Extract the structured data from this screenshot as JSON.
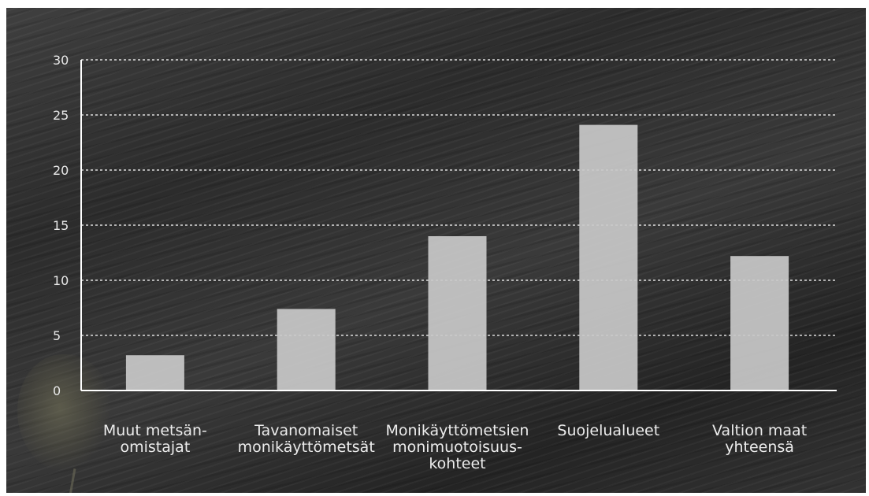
{
  "chart_data": {
    "type": "bar",
    "categories": [
      [
        "Muut metsän-",
        "omistajat"
      ],
      [
        "Tavanomaiset",
        "monikäyttömetsät"
      ],
      [
        "Monikäyttömetsien",
        "monimuotoisuus-",
        "kohteet"
      ],
      [
        "Suojelualueet"
      ],
      [
        "Valtion maat",
        "yhteensä"
      ]
    ],
    "values": [
      3.2,
      7.4,
      14.0,
      24.1,
      12.2
    ],
    "yticks": [
      "0",
      "5",
      "10",
      "15",
      "20",
      "25",
      "30"
    ],
    "ylim": [
      0,
      30
    ],
    "grid": true,
    "colors": {
      "bar": "#c9c9c9",
      "grid": "#ffffff",
      "axis": "#ffffff",
      "text": "#ececec"
    }
  }
}
